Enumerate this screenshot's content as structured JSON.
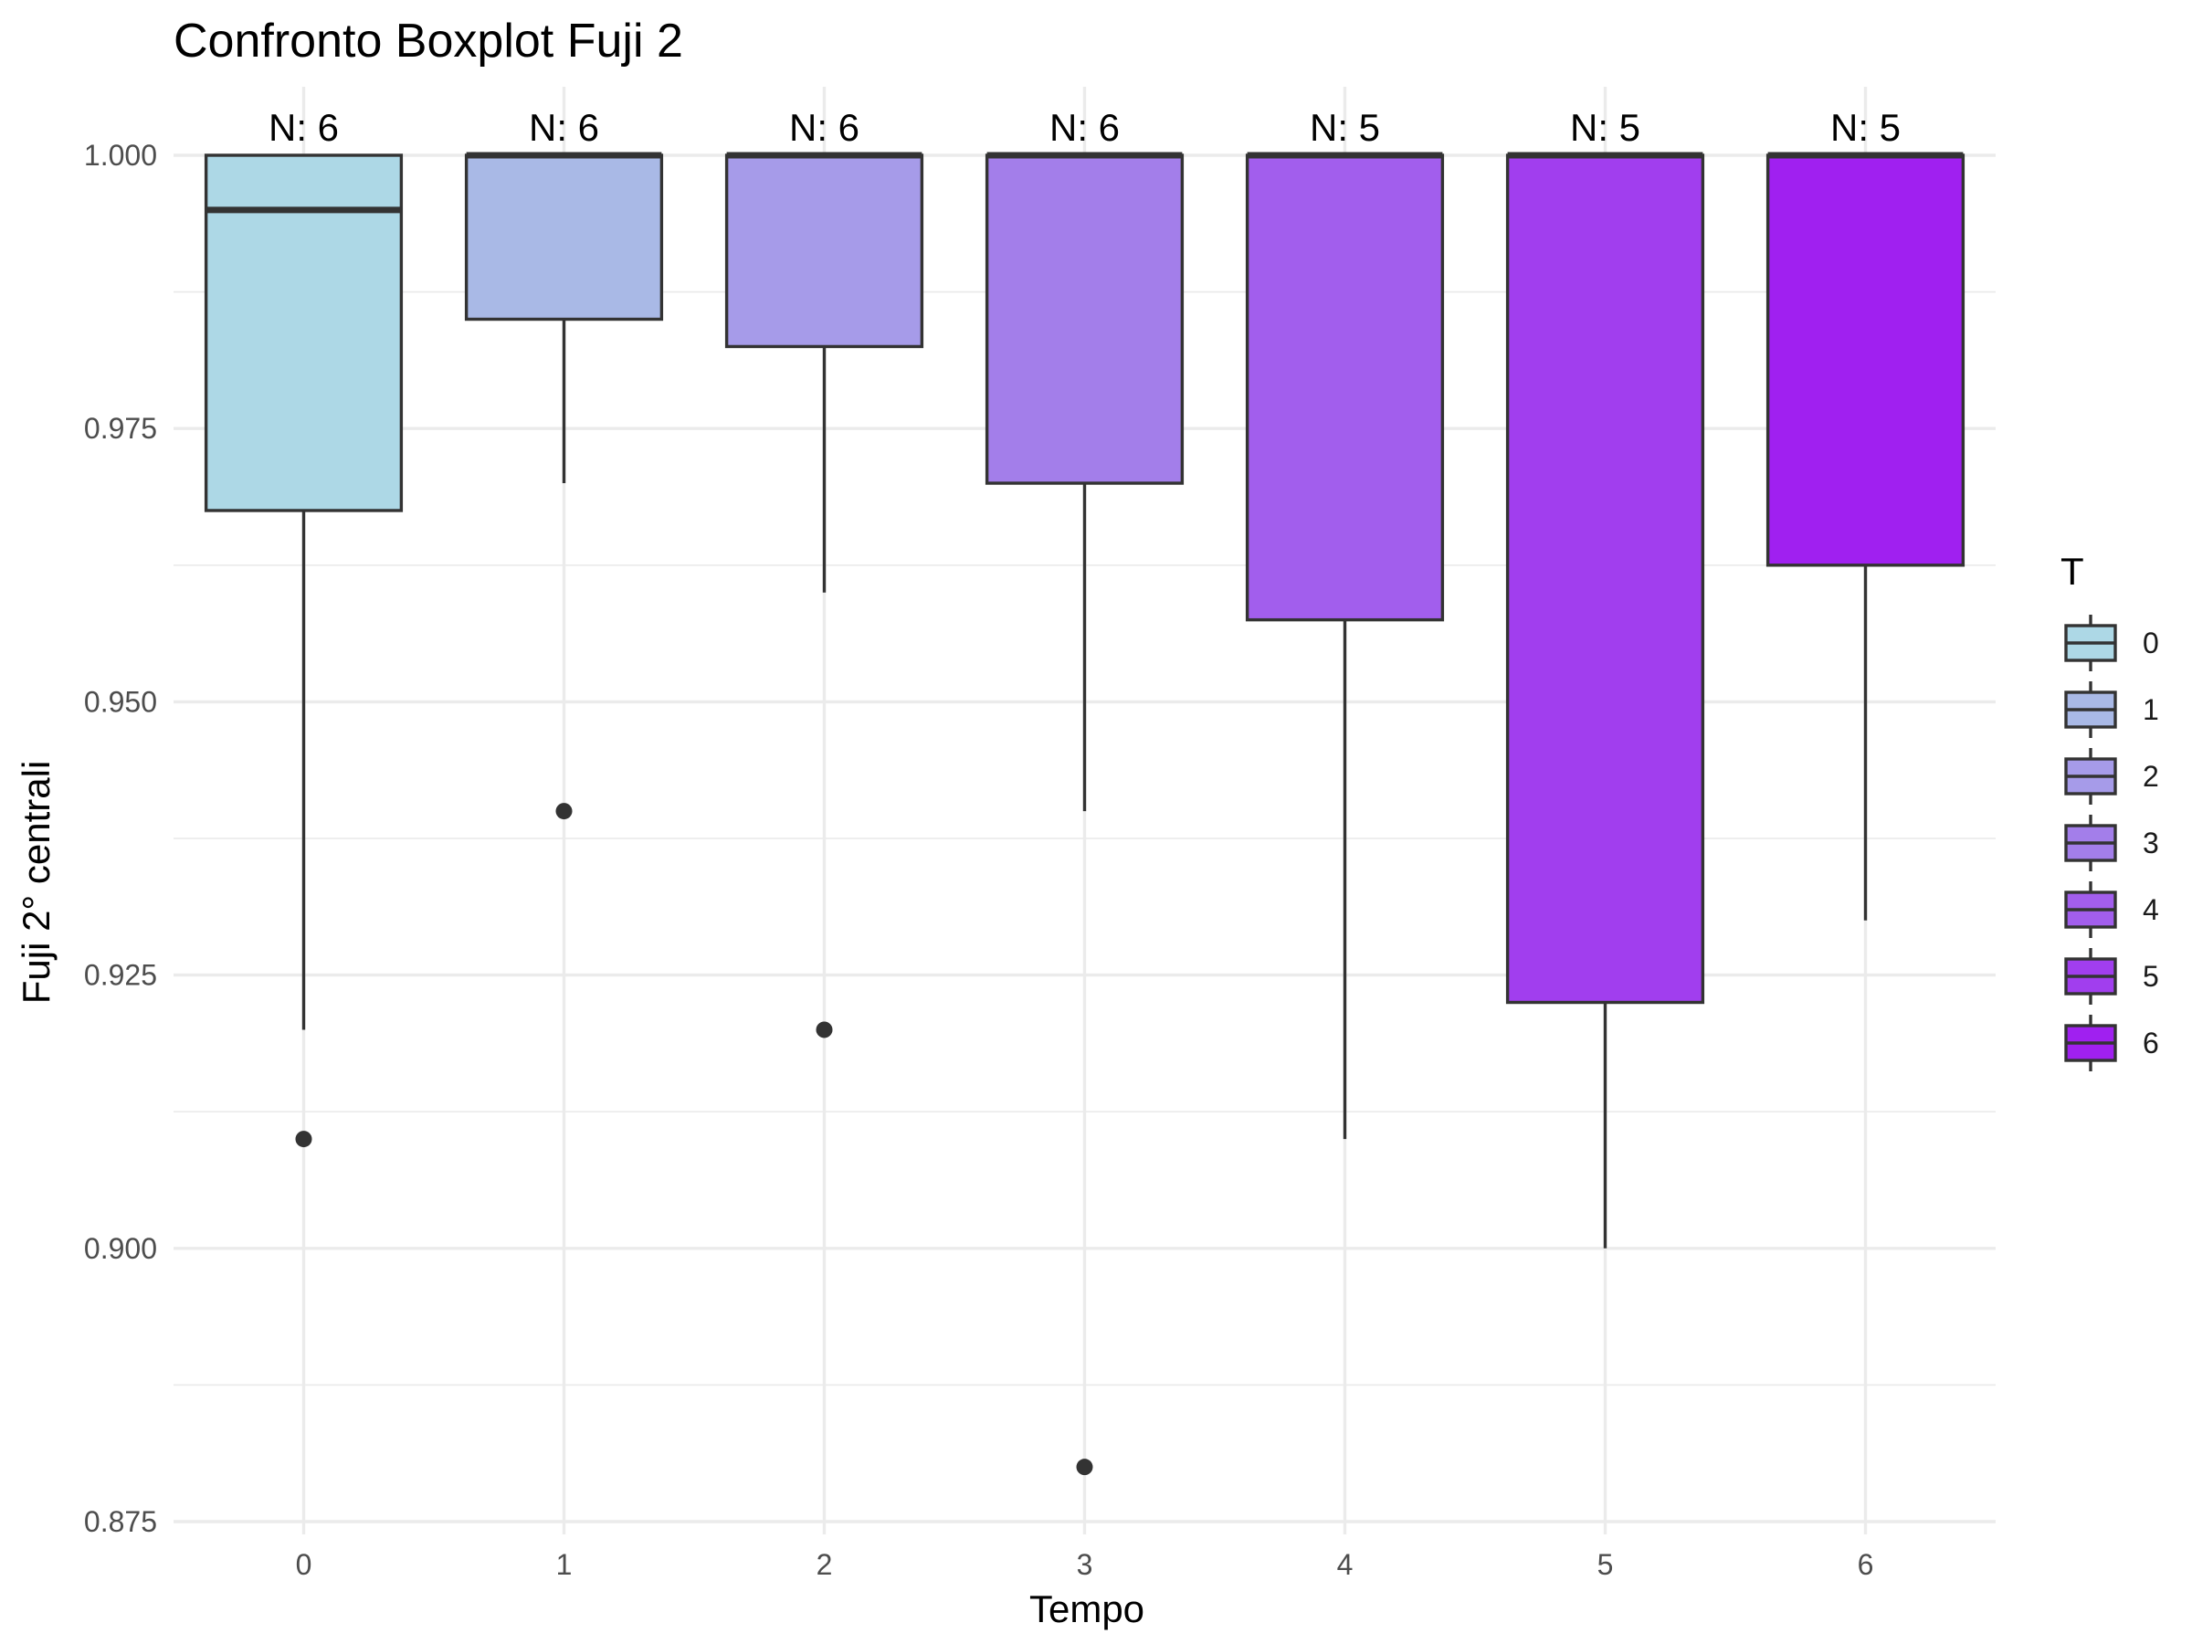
{
  "chart_data": {
    "type": "boxplot",
    "title": "Confronto Boxplot Fuji 2",
    "xlabel": "Tempo",
    "ylabel": "Fuji 2° centrali",
    "ylim": [
      0.875,
      1.005
    ],
    "yticks": [
      "0.875",
      "0.900",
      "0.925",
      "0.950",
      "0.975",
      "1.000"
    ],
    "ytick_values": [
      0.875,
      0.9,
      0.925,
      0.95,
      0.975,
      1.0
    ],
    "categories": [
      "0",
      "1",
      "2",
      "3",
      "4",
      "5",
      "6"
    ],
    "grid": true,
    "legend": {
      "title": "T",
      "position": "right",
      "entries": [
        "0",
        "1",
        "2",
        "3",
        "4",
        "5",
        "6"
      ]
    },
    "series": [
      {
        "category": "0",
        "n_label": "N: 6",
        "color": "#add8e6",
        "lower_whisker": 0.92,
        "q1": 0.9675,
        "median": 0.995,
        "q3": 1.0,
        "upper_whisker": 1.0,
        "outliers": [
          0.91
        ]
      },
      {
        "category": "1",
        "n_label": "N: 6",
        "color": "#a9b9e6",
        "lower_whisker": 0.97,
        "q1": 0.985,
        "median": 1.0,
        "q3": 1.0,
        "upper_whisker": 1.0,
        "outliers": [
          0.94
        ]
      },
      {
        "category": "2",
        "n_label": "N: 6",
        "color": "#a69be9",
        "lower_whisker": 0.96,
        "q1": 0.9825,
        "median": 1.0,
        "q3": 1.0,
        "upper_whisker": 1.0,
        "outliers": [
          0.92
        ]
      },
      {
        "category": "3",
        "n_label": "N: 6",
        "color": "#a37eea",
        "lower_whisker": 0.94,
        "q1": 0.97,
        "median": 1.0,
        "q3": 1.0,
        "upper_whisker": 1.0,
        "outliers": [
          0.88
        ]
      },
      {
        "category": "4",
        "n_label": "N: 5",
        "color": "#a25eed",
        "lower_whisker": 0.91,
        "q1": 0.9575,
        "median": 1.0,
        "q3": 1.0,
        "upper_whisker": 1.0,
        "outliers": []
      },
      {
        "category": "5",
        "n_label": "N: 5",
        "color": "#a13eee",
        "lower_whisker": 0.9,
        "q1": 0.9225,
        "median": 1.0,
        "q3": 1.0,
        "upper_whisker": 1.0,
        "outliers": []
      },
      {
        "category": "6",
        "n_label": "N: 5",
        "color": "#a020f0",
        "lower_whisker": 0.93,
        "q1": 0.9625,
        "median": 1.0,
        "q3": 1.0,
        "upper_whisker": 1.0,
        "outliers": []
      }
    ]
  }
}
